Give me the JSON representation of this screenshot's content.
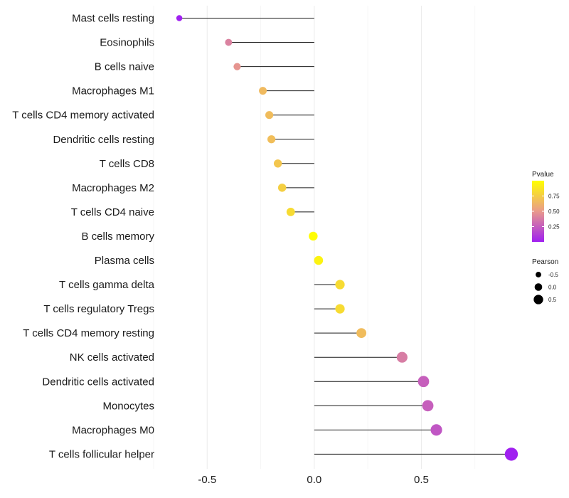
{
  "chart_data": {
    "type": "lollipop",
    "categories": [
      "Mast cells resting",
      "Eosinophils",
      "B cells naive",
      "Macrophages M1",
      "T cells CD4 memory activated",
      "Dendritic cells resting",
      "T cells CD8",
      "Macrophages M2",
      "T cells CD4 naive",
      "B cells memory",
      "Plasma cells",
      "T cells gamma delta",
      "T cells regulatory  Tregs ",
      "T cells CD4 memory resting",
      "NK cells activated",
      "Dendritic cells activated",
      "Monocytes",
      "Macrophages M0",
      "T cells follicular helper"
    ],
    "pearson": [
      -0.63,
      -0.4,
      -0.36,
      -0.24,
      -0.21,
      -0.2,
      -0.17,
      -0.15,
      -0.11,
      -0.005,
      0.02,
      0.12,
      0.12,
      0.22,
      0.41,
      0.51,
      0.53,
      0.57,
      0.92
    ],
    "pvalue": [
      0.0,
      0.4,
      0.48,
      0.66,
      0.67,
      0.68,
      0.72,
      0.76,
      0.82,
      0.99,
      0.94,
      0.82,
      0.82,
      0.67,
      0.38,
      0.26,
      0.26,
      0.22,
      0.0
    ],
    "xticks": [
      -0.5,
      0.0,
      0.5
    ],
    "xtick_labels": [
      "-0.5",
      "0.0",
      "0.5"
    ],
    "xlim": [
      -0.72,
      0.96
    ],
    "xlabel": "",
    "ylabel": "",
    "legend": {
      "pvalue_title": "Pvalue",
      "pvalue_ticks": [
        0.75,
        0.5,
        0.25
      ],
      "pvalue_tick_labels": [
        "0.75",
        "0.50",
        "0.25"
      ],
      "pvalue_range": [
        0.0,
        1.0
      ],
      "pvalue_colors": {
        "low": "#a020f0",
        "mid": "#e99a8c",
        "high": "#ffff00"
      },
      "pearson_title": "Pearson",
      "pearson_values": [
        -0.5,
        0.0,
        0.5
      ],
      "pearson_labels": [
        "-0.5",
        "0.0",
        "0.5"
      ],
      "placement": "right"
    }
  }
}
